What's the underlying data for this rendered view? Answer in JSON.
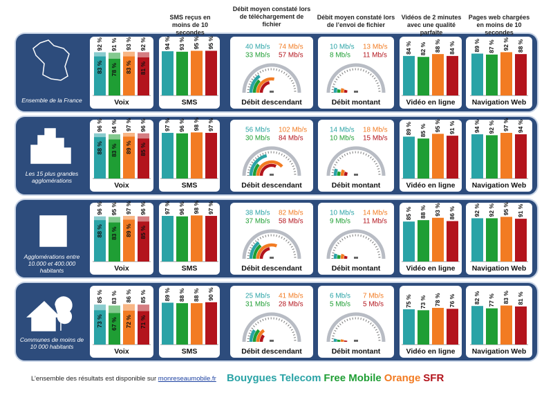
{
  "headers": {
    "sms": "SMS reçus en moins de 10 secondes",
    "download": "Débit moyen constaté lors de téléchargement de fichier",
    "upload": "Débit moyen constaté lors de l’envoi de fichier",
    "video": "Vidéos de 2 minutes avec une qualité parfaite",
    "web": "Pages web chargées en moins de 10 secondes"
  },
  "sections": {
    "voice": "Voix",
    "sms": "SMS",
    "download": "Débit descendant",
    "upload": "Débit montant",
    "video": "Vidéo en ligne",
    "web": "Navigation Web"
  },
  "operators": [
    {
      "name": "Bouygues Telecom",
      "color": "#2aa3a6"
    },
    {
      "name": "Free Mobile",
      "color": "#1f9e34"
    },
    {
      "name": "Orange",
      "color": "#f27b22"
    },
    {
      "name": "SFR",
      "color": "#b3141c"
    }
  ],
  "rows": [
    {
      "label": "Ensemble de la France",
      "voice": {
        "values": [
          92,
          91,
          93,
          92
        ],
        "value_labels": [
          "92 %",
          "91 %",
          "93 %",
          "92 %"
        ],
        "inner_values": [
          83,
          78,
          83,
          81
        ],
        "inner_value_labels": [
          "83 %",
          "78 %",
          "83 %",
          "81 %"
        ]
      },
      "sms": {
        "values": [
          94,
          93,
          95,
          95
        ],
        "value_labels": [
          "94 %",
          "93 %",
          "95 %",
          "95 %"
        ]
      },
      "download": {
        "values": [
          40,
          33,
          74,
          57
        ],
        "value_labels": [
          "40 Mb/s",
          "33 Mb/s",
          "74 Mb/s",
          "57 Mb/s"
        ]
      },
      "upload": {
        "values": [
          10,
          8,
          13,
          11
        ],
        "value_labels": [
          "10 Mb/s",
          "8 Mb/s",
          "13 Mb/s",
          "11 Mb/s"
        ]
      },
      "video": {
        "values": [
          84,
          82,
          88,
          84
        ],
        "value_labels": [
          "84 %",
          "82 %",
          "88 %",
          "84 %"
        ]
      },
      "web": {
        "values": [
          89,
          87,
          92,
          88
        ],
        "value_labels": [
          "89 %",
          "87 %",
          "92 %",
          "88 %"
        ]
      }
    },
    {
      "label": "Les 15 plus grandes agglomérations",
      "voice": {
        "values": [
          96,
          94,
          97,
          96
        ],
        "value_labels": [
          "96 %",
          "94 %",
          "97 %",
          "96 %"
        ],
        "inner_values": [
          88,
          83,
          89,
          85
        ],
        "inner_value_labels": [
          "88 %",
          "83 %",
          "89 %",
          "85 %"
        ]
      },
      "sms": {
        "values": [
          97,
          96,
          98,
          97
        ],
        "value_labels": [
          "97 %",
          "96 %",
          "98 %",
          "97 %"
        ]
      },
      "download": {
        "values": [
          56,
          30,
          102,
          84
        ],
        "value_labels": [
          "56 Mb/s",
          "30 Mb/s",
          "102 Mb/s",
          "84 Mb/s"
        ]
      },
      "upload": {
        "values": [
          14,
          10,
          18,
          15
        ],
        "value_labels": [
          "14 Mb/s",
          "10 Mb/s",
          "18 Mb/s",
          "15 Mb/s"
        ]
      },
      "video": {
        "values": [
          89,
          85,
          95,
          91
        ],
        "value_labels": [
          "89 %",
          "85 %",
          "95 %",
          "91 %"
        ]
      },
      "web": {
        "values": [
          94,
          92,
          97,
          94
        ],
        "value_labels": [
          "94 %",
          "92 %",
          "97 %",
          "94 %"
        ]
      }
    },
    {
      "label": "Agglomérations entre 10.000 et 400.000 habitants",
      "voice": {
        "values": [
          96,
          95,
          97,
          96
        ],
        "value_labels": [
          "96 %",
          "95 %",
          "97 %",
          "96 %"
        ],
        "inner_values": [
          88,
          83,
          89,
          85
        ],
        "inner_value_labels": [
          "88 %",
          "83 %",
          "89 %",
          "85 %"
        ]
      },
      "sms": {
        "values": [
          97,
          96,
          98,
          97
        ],
        "value_labels": [
          "97 %",
          "96 %",
          "98 %",
          "97 %"
        ]
      },
      "download": {
        "values": [
          38,
          37,
          82,
          58
        ],
        "value_labels": [
          "38 Mb/s",
          "37 Mb/s",
          "82 Mb/s",
          "58 Mb/s"
        ]
      },
      "upload": {
        "values": [
          10,
          9,
          14,
          11
        ],
        "value_labels": [
          "10 Mb/s",
          "9 Mb/s",
          "14 Mb/s",
          "11 Mb/s"
        ]
      },
      "video": {
        "values": [
          85,
          88,
          93,
          86
        ],
        "value_labels": [
          "85 %",
          "88 %",
          "93 %",
          "86 %"
        ]
      },
      "web": {
        "values": [
          92,
          92,
          95,
          91
        ],
        "value_labels": [
          "92 %",
          "92 %",
          "95 %",
          "91 %"
        ]
      }
    },
    {
      "label": "Communes de moins de 10 000 habitants",
      "voice": {
        "values": [
          85,
          83,
          86,
          85
        ],
        "value_labels": [
          "85 %",
          "83 %",
          "86 %",
          "85 %"
        ],
        "inner_values": [
          73,
          67,
          72,
          71
        ],
        "inner_value_labels": [
          "73 %",
          "67 %",
          "72 %",
          "71 %"
        ]
      },
      "sms": {
        "values": [
          89,
          88,
          88,
          90
        ],
        "value_labels": [
          "89 %",
          "88 %",
          "88 %",
          "90 %"
        ]
      },
      "download": {
        "values": [
          25,
          31,
          41,
          28
        ],
        "value_labels": [
          "25 Mb/s",
          "31 Mb/s",
          "41 Mb/s",
          "28 Mb/s"
        ]
      },
      "upload": {
        "values": [
          6,
          5,
          7,
          5
        ],
        "value_labels": [
          "6 Mb/s",
          "5 Mb/s",
          "7 Mb/s",
          "5 Mb/s"
        ]
      },
      "video": {
        "values": [
          75,
          73,
          78,
          76
        ],
        "value_labels": [
          "75 %",
          "73 %",
          "78 %",
          "76 %"
        ]
      },
      "web": {
        "values": [
          82,
          77,
          83,
          81
        ],
        "value_labels": [
          "82 %",
          "77 %",
          "83 %",
          "81 %"
        ]
      }
    }
  ],
  "footer": {
    "text": "L’ensemble des résultats est disponible sur",
    "link": "monreseaumobile.fr"
  }
}
